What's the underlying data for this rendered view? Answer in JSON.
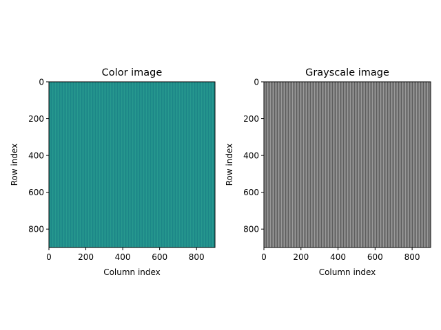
{
  "colors": {
    "color_image_fill": "#218f8b",
    "color_image_stripe_light": "#27998f",
    "color_image_stripe_dark": "#1c8687",
    "gray_image_fill": "#7c7c7c",
    "gray_image_stripe_light": "#9a9a9a",
    "gray_image_stripe_dark": "#5e5e5e"
  },
  "chart_data": [
    {
      "type": "heatmap",
      "title": "Color image",
      "xlabel": "Column index",
      "ylabel": "Row index",
      "xlim": [
        0,
        900
      ],
      "ylim": [
        900,
        0
      ],
      "x_ticks": [
        0,
        200,
        400,
        600,
        800
      ],
      "y_ticks": [
        0,
        200,
        400,
        600,
        800
      ],
      "x_tick_labels": [
        "0",
        "200",
        "400",
        "600",
        "800"
      ],
      "y_tick_labels": [
        "0",
        "200",
        "400",
        "600",
        "800"
      ],
      "colormap": "viridis",
      "pattern": "fine vertical stripes of near-uniform value"
    },
    {
      "type": "heatmap",
      "title": "Grayscale image",
      "xlabel": "Column index",
      "ylabel": "Row index",
      "xlim": [
        0,
        900
      ],
      "ylim": [
        900,
        0
      ],
      "x_ticks": [
        0,
        200,
        400,
        600,
        800
      ],
      "y_ticks": [
        0,
        200,
        400,
        600,
        800
      ],
      "x_tick_labels": [
        "0",
        "200",
        "400",
        "600",
        "800"
      ],
      "y_tick_labels": [
        "0",
        "200",
        "400",
        "600",
        "800"
      ],
      "colormap": "gray",
      "pattern": "fine vertical stripes of mid-gray values"
    }
  ]
}
